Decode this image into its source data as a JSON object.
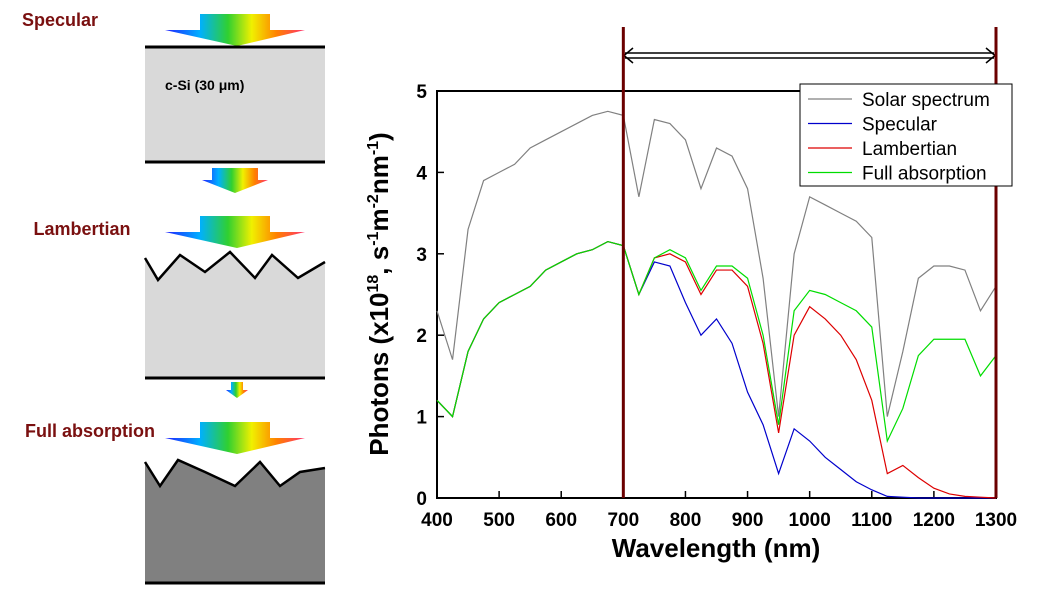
{
  "diagram": {
    "labels": [
      "Specular",
      "Lambertian",
      "Full absorption"
    ],
    "layer": "c-Si (30 μm)"
  },
  "chart_data": {
    "type": "line",
    "x_label": "Wavelength (nm)",
    "y_label": [
      "Photons (x10",
      "18",
      ", s",
      "-1",
      "m",
      "-2",
      "nm",
      "-1",
      ")"
    ],
    "x": [
      400,
      425,
      450,
      475,
      500,
      525,
      550,
      575,
      600,
      625,
      650,
      675,
      700,
      725,
      750,
      775,
      800,
      825,
      850,
      875,
      900,
      925,
      950,
      975,
      1000,
      1025,
      1050,
      1075,
      1100,
      1125,
      1150,
      1175,
      1200,
      1225,
      1250,
      1275,
      1300
    ],
    "series": [
      {
        "name": "Solar spectrum",
        "color": "#808080",
        "values": [
          2.3,
          1.7,
          3.3,
          3.9,
          4.0,
          4.1,
          4.3,
          4.4,
          4.5,
          4.6,
          4.7,
          4.75,
          4.7,
          3.7,
          4.65,
          4.6,
          4.4,
          3.8,
          4.3,
          4.2,
          3.8,
          2.7,
          1.0,
          3.0,
          3.7,
          3.6,
          3.5,
          3.4,
          3.2,
          1.0,
          1.8,
          2.7,
          2.85,
          2.85,
          2.8,
          2.3,
          2.6
        ]
      },
      {
        "name": "Specular",
        "color": "#0000cc",
        "values": [
          1.2,
          1.0,
          1.8,
          2.2,
          2.4,
          2.5,
          2.6,
          2.8,
          2.9,
          3.0,
          3.05,
          3.15,
          3.1,
          2.5,
          2.9,
          2.85,
          2.4,
          2.0,
          2.2,
          1.9,
          1.3,
          0.9,
          0.3,
          0.85,
          0.7,
          0.5,
          0.35,
          0.2,
          0.1,
          0.02,
          0.01,
          0,
          0,
          0,
          0,
          0,
          0
        ]
      },
      {
        "name": "Lambertian",
        "color": "#dd0000",
        "values": [
          1.2,
          1.0,
          1.8,
          2.2,
          2.4,
          2.5,
          2.6,
          2.8,
          2.9,
          3.0,
          3.05,
          3.15,
          3.1,
          2.5,
          2.95,
          3.0,
          2.9,
          2.5,
          2.8,
          2.8,
          2.6,
          1.9,
          0.8,
          2.0,
          2.35,
          2.2,
          2.0,
          1.7,
          1.2,
          0.3,
          0.4,
          0.25,
          0.12,
          0.05,
          0.02,
          0.01,
          0
        ]
      },
      {
        "name": "Full absorption",
        "color": "#00dd00",
        "values": [
          1.2,
          1.0,
          1.8,
          2.2,
          2.4,
          2.5,
          2.6,
          2.8,
          2.9,
          3.0,
          3.05,
          3.15,
          3.1,
          2.5,
          2.95,
          3.05,
          2.95,
          2.55,
          2.85,
          2.85,
          2.7,
          2.0,
          0.9,
          2.3,
          2.55,
          2.5,
          2.4,
          2.3,
          2.1,
          0.7,
          1.1,
          1.75,
          1.95,
          1.95,
          1.95,
          1.5,
          1.75
        ]
      }
    ],
    "xlim": [
      400,
      1300
    ],
    "ylim": [
      0,
      5
    ],
    "xticks": [
      400,
      500,
      600,
      700,
      800,
      900,
      1000,
      1100,
      1200,
      1300
    ],
    "yticks": [
      0,
      1,
      2,
      3,
      4,
      5
    ],
    "vlines": [
      700,
      1300
    ],
    "vline_color": "#6b0000"
  }
}
